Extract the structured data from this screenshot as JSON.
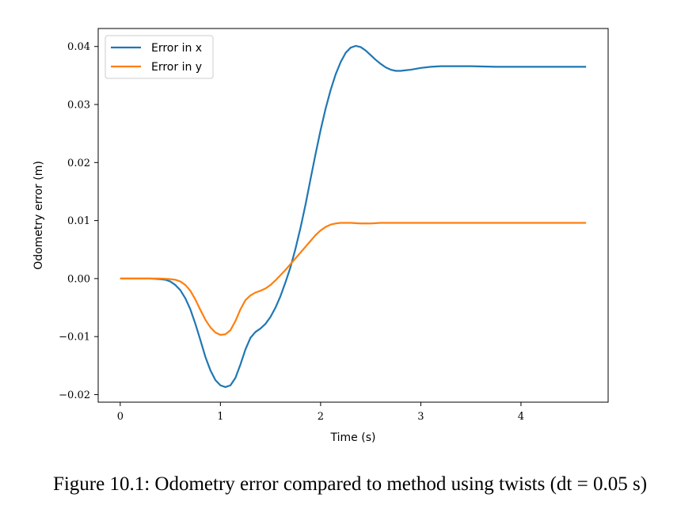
{
  "caption": "Figure 10.1: Odometry error compared to method using twists (dt = 0.05 s)",
  "chart_data": {
    "type": "line",
    "title": "",
    "xlabel": "Time (s)",
    "ylabel": "Odometry error (m)",
    "xlim": [
      -0.22,
      4.87
    ],
    "ylim": [
      -0.0213,
      0.0431
    ],
    "xticks": [
      0,
      1,
      2,
      3,
      4
    ],
    "xtick_labels": [
      "0",
      "1",
      "2",
      "3",
      "4"
    ],
    "yticks": [
      -0.02,
      -0.01,
      0.0,
      0.01,
      0.02,
      0.03,
      0.04
    ],
    "ytick_labels": [
      "−0.02",
      "−0.01",
      "0.00",
      "0.01",
      "0.02",
      "0.03",
      "0.04"
    ],
    "grid": false,
    "legend_position": "top-left",
    "series": [
      {
        "name": "Error in x",
        "color": "#1f77b4",
        "x": [
          0,
          0.1,
          0.2,
          0.3,
          0.4,
          0.45,
          0.5,
          0.55,
          0.6,
          0.65,
          0.7,
          0.75,
          0.8,
          0.85,
          0.9,
          0.95,
          1.0,
          1.05,
          1.1,
          1.15,
          1.2,
          1.25,
          1.3,
          1.35,
          1.4,
          1.45,
          1.5,
          1.55,
          1.6,
          1.65,
          1.7,
          1.75,
          1.8,
          1.85,
          1.9,
          1.95,
          2.0,
          2.05,
          2.1,
          2.15,
          2.2,
          2.25,
          2.3,
          2.35,
          2.4,
          2.45,
          2.5,
          2.55,
          2.6,
          2.65,
          2.7,
          2.75,
          2.8,
          2.85,
          2.9,
          3.0,
          3.1,
          3.2,
          3.3,
          3.5,
          3.75,
          4.0,
          4.25,
          4.5,
          4.65
        ],
        "y": [
          0.0,
          0.0,
          0.0,
          0.0,
          -0.0001,
          -0.0002,
          -0.0005,
          -0.0011,
          -0.002,
          -0.0034,
          -0.0053,
          -0.0078,
          -0.0106,
          -0.0135,
          -0.0158,
          -0.0175,
          -0.0184,
          -0.0187,
          -0.0184,
          -0.0171,
          -0.0148,
          -0.0122,
          -0.0102,
          -0.0092,
          -0.0086,
          -0.0078,
          -0.0066,
          -0.005,
          -0.003,
          -0.0006,
          0.002,
          0.0052,
          0.0088,
          0.0128,
          0.0172,
          0.0215,
          0.0256,
          0.0293,
          0.0325,
          0.0352,
          0.0373,
          0.0389,
          0.0398,
          0.0401,
          0.0399,
          0.0393,
          0.0385,
          0.0377,
          0.037,
          0.0364,
          0.036,
          0.0358,
          0.0358,
          0.0359,
          0.036,
          0.0363,
          0.0365,
          0.0366,
          0.0366,
          0.0366,
          0.0365,
          0.0365,
          0.0365,
          0.0365,
          0.0365
        ]
      },
      {
        "name": "Error in y",
        "color": "#ff7f0e",
        "x": [
          0,
          0.1,
          0.2,
          0.3,
          0.4,
          0.5,
          0.55,
          0.6,
          0.65,
          0.7,
          0.75,
          0.8,
          0.85,
          0.9,
          0.95,
          1.0,
          1.05,
          1.1,
          1.15,
          1.2,
          1.25,
          1.3,
          1.35,
          1.4,
          1.45,
          1.5,
          1.55,
          1.6,
          1.65,
          1.7,
          1.75,
          1.8,
          1.85,
          1.9,
          1.95,
          2.0,
          2.05,
          2.1,
          2.15,
          2.2,
          2.25,
          2.3,
          2.4,
          2.5,
          2.6,
          2.8,
          3.0,
          3.5,
          4.0,
          4.5,
          4.65
        ],
        "y": [
          0.0,
          0.0,
          0.0,
          0.0,
          0.0,
          -0.0001,
          -0.0002,
          -0.0005,
          -0.0011,
          -0.0021,
          -0.0036,
          -0.0054,
          -0.0071,
          -0.0084,
          -0.0093,
          -0.0097,
          -0.0096,
          -0.0089,
          -0.0073,
          -0.0053,
          -0.0037,
          -0.0029,
          -0.0024,
          -0.0021,
          -0.0017,
          -0.0011,
          -0.0003,
          0.0006,
          0.0015,
          0.0025,
          0.0035,
          0.0045,
          0.0055,
          0.0065,
          0.0075,
          0.0083,
          0.0089,
          0.0093,
          0.0095,
          0.0096,
          0.0096,
          0.0096,
          0.0095,
          0.0095,
          0.0096,
          0.0096,
          0.0096,
          0.0096,
          0.0096,
          0.0096,
          0.0096
        ]
      }
    ]
  }
}
